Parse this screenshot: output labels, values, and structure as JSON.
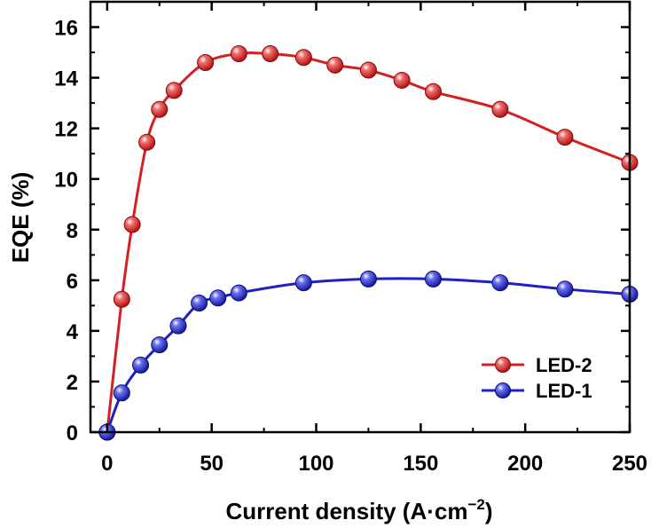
{
  "chart_data": {
    "type": "line",
    "xlabel": "Current density (A·cm",
    "xlabel_sup": "−2",
    "xlabel_tail": ")",
    "ylabel": "EQE (%)",
    "xlim": [
      -8,
      250
    ],
    "ylim": [
      0,
      17
    ],
    "xticks": [
      0,
      50,
      100,
      150,
      200,
      250
    ],
    "yticks": [
      0,
      2,
      4,
      6,
      8,
      10,
      12,
      14,
      16
    ],
    "grid": false,
    "legend_position": "bottom-right",
    "series": [
      {
        "name": "LED-2",
        "color": "#d42020",
        "x": [
          0,
          7,
          12,
          19,
          25,
          32,
          47,
          63,
          78,
          94,
          109,
          125,
          141,
          156,
          188,
          219,
          250
        ],
        "y": [
          0,
          5.25,
          8.2,
          11.45,
          12.75,
          13.5,
          14.6,
          14.95,
          14.95,
          14.8,
          14.5,
          14.3,
          13.9,
          13.45,
          12.75,
          11.65,
          10.65
        ]
      },
      {
        "name": "LED-1",
        "color": "#1c22c4",
        "x": [
          0,
          7,
          16,
          25,
          34,
          44,
          53,
          63,
          94,
          125,
          156,
          188,
          219,
          250
        ],
        "y": [
          0,
          1.55,
          2.65,
          3.45,
          4.2,
          5.1,
          5.3,
          5.5,
          5.9,
          6.05,
          6.05,
          5.9,
          5.65,
          5.45
        ]
      }
    ]
  }
}
